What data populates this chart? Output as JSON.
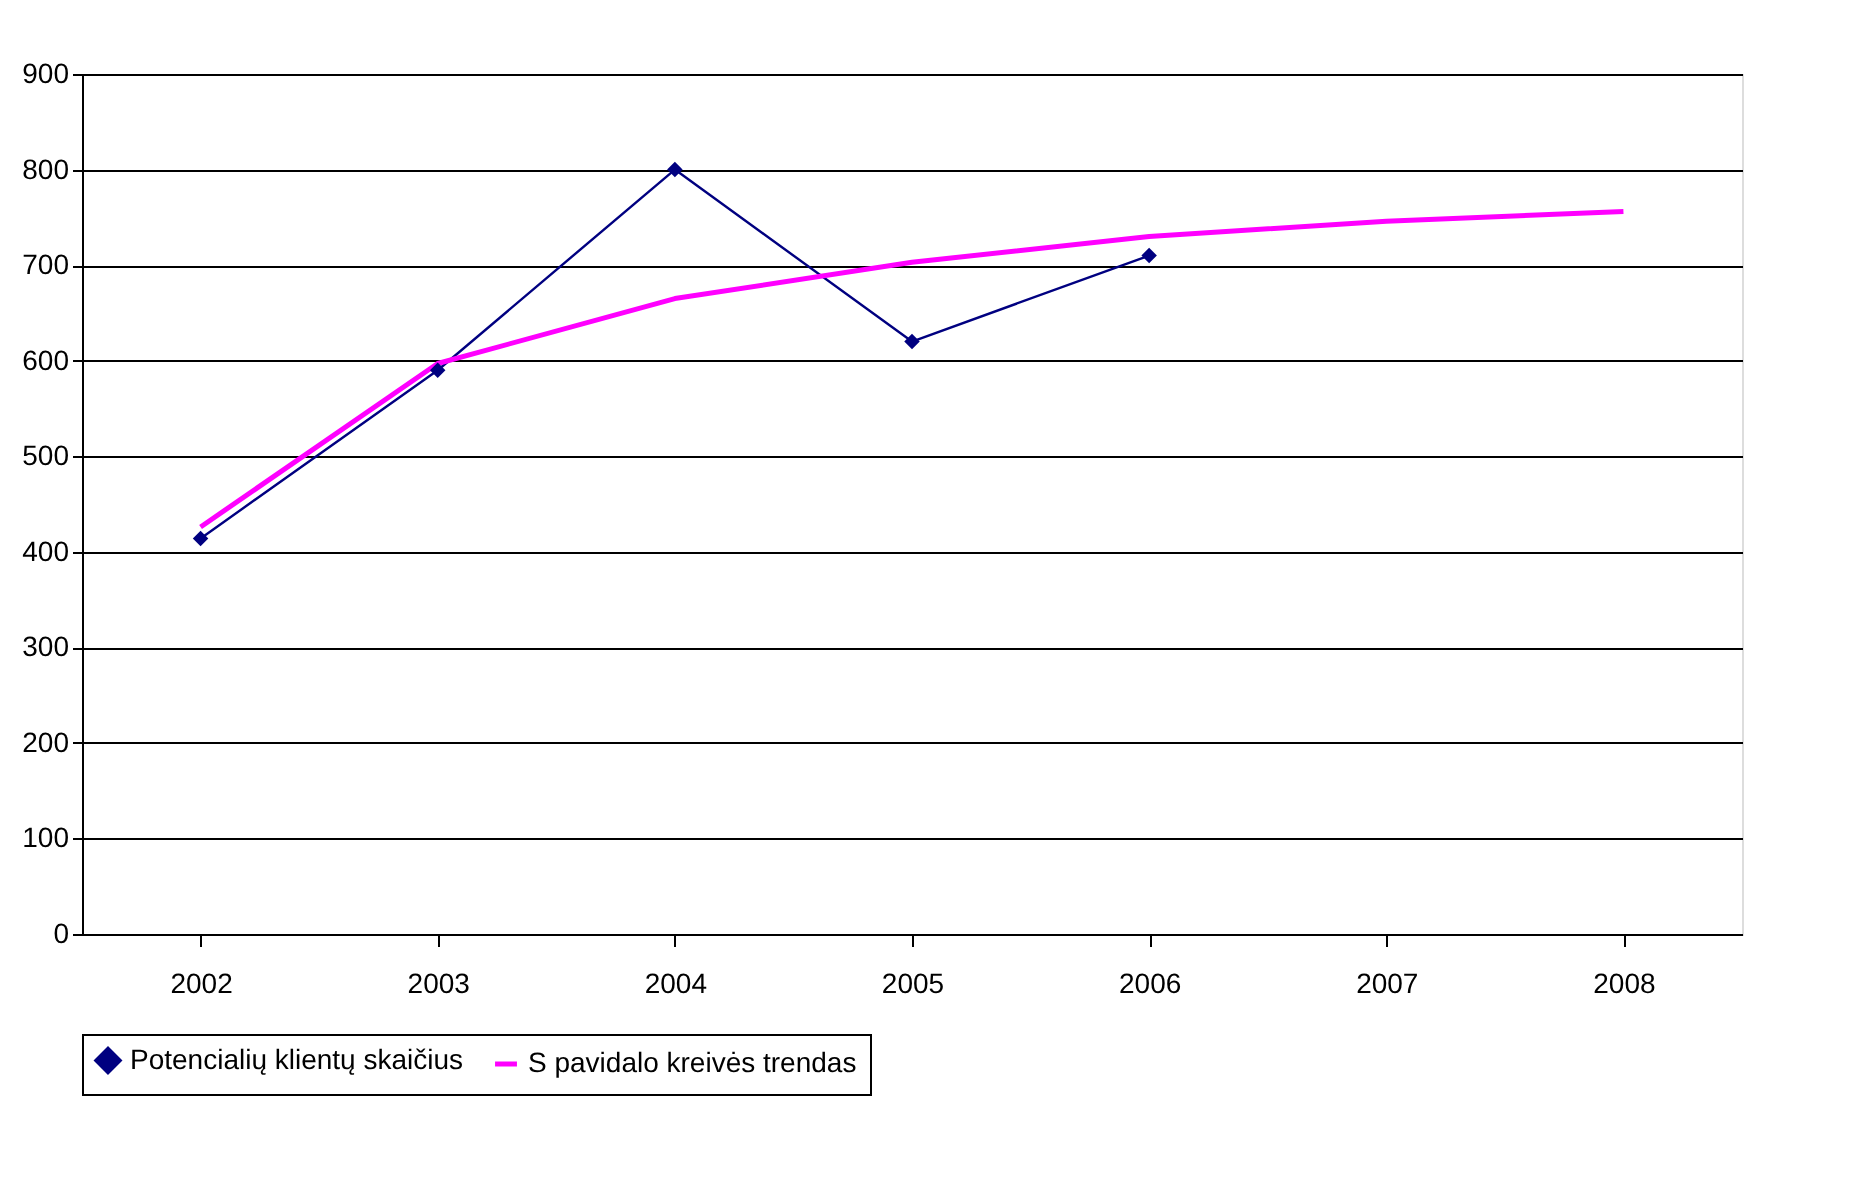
{
  "chart_data": {
    "type": "line",
    "categories": [
      "2002",
      "2003",
      "2004",
      "2005",
      "2006",
      "2007",
      "2008"
    ],
    "series": [
      {
        "name": "Potencialių klientų skaičius",
        "color": "#000080",
        "marker": "diamond",
        "values": [
          414,
          590,
          800,
          620,
          710,
          null,
          null
        ]
      },
      {
        "name": "S pavidalo kreivės trendas",
        "color": "#ff00ff",
        "marker": "none",
        "values": [
          426,
          597,
          665,
          703,
          730,
          746,
          756
        ]
      }
    ],
    "ylim": [
      0,
      900
    ],
    "yticks": [
      0,
      100,
      200,
      300,
      400,
      500,
      600,
      700,
      800,
      900
    ],
    "grid": "y",
    "legend": "bottom",
    "line_style": "solid"
  }
}
